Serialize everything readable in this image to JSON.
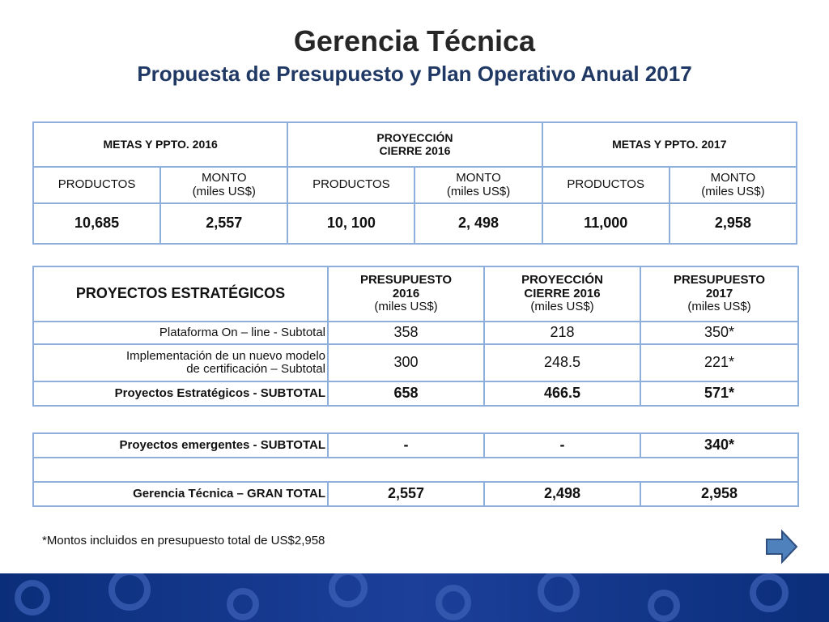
{
  "header": {
    "title": "Gerencia Técnica",
    "subtitle": "Propuesta de Presupuesto y Plan Operativo Anual 2017"
  },
  "table1": {
    "headers": [
      [
        "METAS Y PPTO. 2016"
      ],
      [
        "PROYECCIÓN",
        "CIERRE 2016"
      ],
      [
        "METAS Y PPTO. 2017"
      ]
    ],
    "subheaders": [
      [
        "PRODUCTOS"
      ],
      [
        "MONTO",
        "(miles US$)"
      ],
      [
        "PRODUCTOS"
      ],
      [
        "MONTO",
        "(miles US$)"
      ],
      [
        "PRODUCTOS"
      ],
      [
        "MONTO",
        "(miles US$)"
      ]
    ],
    "values": [
      "10,685",
      "2,557",
      "10, 100",
      "2, 498",
      "11,000",
      "2,958"
    ]
  },
  "table2": {
    "title": "PROYECTOS ESTRATÉGICOS",
    "columns": [
      [
        "PRESUPUESTO",
        "2016",
        "(miles US$)"
      ],
      [
        "PROYECCIÓN",
        "CIERRE 2016",
        "(miles US$)"
      ],
      [
        "PRESUPUESTO",
        "2017",
        "(miles US$)"
      ]
    ],
    "rows": [
      {
        "label": [
          "Plataforma On – line - Subtotal"
        ],
        "values": [
          "358",
          "218",
          "350*"
        ]
      },
      {
        "label": [
          "Implementación de un nuevo modelo",
          "de certificación – Subtotal"
        ],
        "values": [
          "300",
          "248.5",
          "221*"
        ]
      },
      {
        "label": [
          "Proyectos Estratégicos - SUBTOTAL"
        ],
        "values": [
          "658",
          "466.5",
          "571*"
        ]
      }
    ]
  },
  "table3": {
    "rows": [
      {
        "label": "Proyectos emergentes  - SUBTOTAL",
        "values": [
          "-",
          "-",
          "340*"
        ]
      },
      {
        "label": "Gerencia Técnica – GRAN TOTAL",
        "values": [
          "2,557",
          "2,498",
          "2,958"
        ]
      }
    ]
  },
  "footnote": "*Montos incluidos en presupuesto total de US$2,958"
}
